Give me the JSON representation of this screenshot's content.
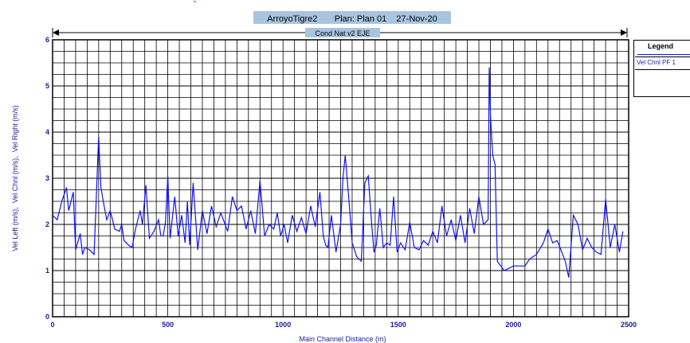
{
  "header": {
    "title": "ArroyoTigre2       Plan: Plan 01    27-Nov-20",
    "reach": "Cond Nat v2 EJE"
  },
  "legend": {
    "title": "Legend",
    "entries": [
      "Vel Chnl PF 1"
    ]
  },
  "colors": {
    "series": "#1010ff",
    "title_bg": "#a8c4de",
    "grid": "#000000"
  },
  "chart_data": {
    "type": "line",
    "xlabel": "Main Channel Distance (m)",
    "ylabel": "Vel Left (m/s),  Vel Chnl (m/s),  Vel Right (m/s)",
    "xlim": [
      0,
      2500
    ],
    "ylim": [
      0,
      6
    ],
    "x_ticks": [
      "0",
      "500",
      "1000",
      "1500",
      "2000",
      "2500"
    ],
    "y_ticks": [
      "0",
      "1",
      "2",
      "3",
      "4",
      "5",
      "6"
    ],
    "grid": true,
    "legend_position": "right",
    "series": [
      {
        "name": "Vel Chnl PF 1",
        "x": [
          0,
          20,
          40,
          60,
          70,
          80,
          90,
          100,
          120,
          130,
          140,
          160,
          180,
          200,
          210,
          220,
          235,
          250,
          270,
          290,
          300,
          310,
          330,
          345,
          360,
          380,
          390,
          405,
          420,
          440,
          460,
          470,
          480,
          490,
          500,
          510,
          530,
          545,
          560,
          575,
          585,
          595,
          610,
          630,
          650,
          670,
          690,
          710,
          730,
          760,
          780,
          800,
          820,
          840,
          860,
          880,
          900,
          920,
          940,
          960,
          975,
          990,
          1005,
          1020,
          1040,
          1060,
          1080,
          1100,
          1120,
          1140,
          1160,
          1175,
          1185,
          1195,
          1210,
          1230,
          1250,
          1260,
          1270,
          1285,
          1300,
          1320,
          1340,
          1355,
          1370,
          1385,
          1395,
          1405,
          1420,
          1435,
          1450,
          1465,
          1480,
          1495,
          1510,
          1530,
          1550,
          1570,
          1590,
          1610,
          1630,
          1650,
          1670,
          1690,
          1710,
          1730,
          1750,
          1770,
          1790,
          1810,
          1830,
          1850,
          1870,
          1890,
          1895,
          1900,
          1910,
          1920,
          1930,
          1960,
          2000,
          2030,
          2050,
          2070,
          2100,
          2130,
          2150,
          2170,
          2190,
          2210,
          2225,
          2240,
          2260,
          2280,
          2300,
          2320,
          2340,
          2360,
          2380,
          2400,
          2420,
          2440,
          2460,
          2475
        ],
        "values": [
          2.2,
          2.1,
          2.5,
          2.8,
          2.3,
          2.5,
          2.7,
          1.45,
          1.8,
          1.35,
          1.5,
          1.45,
          1.35,
          3.9,
          2.8,
          2.5,
          2.1,
          2.3,
          1.9,
          1.85,
          2.0,
          1.65,
          1.55,
          1.5,
          1.9,
          2.3,
          2.0,
          2.85,
          1.7,
          1.85,
          2.1,
          1.75,
          1.75,
          2.05,
          3.05,
          1.7,
          2.6,
          1.75,
          2.2,
          1.6,
          2.5,
          1.55,
          2.9,
          1.45,
          2.3,
          1.8,
          2.4,
          1.95,
          2.25,
          1.85,
          2.6,
          2.3,
          2.4,
          1.9,
          2.3,
          1.8,
          2.95,
          1.75,
          2.0,
          1.9,
          2.25,
          1.75,
          2.0,
          1.6,
          2.2,
          1.85,
          2.15,
          1.8,
          2.4,
          1.95,
          2.7,
          1.75,
          1.55,
          1.5,
          2.2,
          1.4,
          2.0,
          3.0,
          3.5,
          2.6,
          1.6,
          1.3,
          1.2,
          2.9,
          3.05,
          2.0,
          1.4,
          1.55,
          2.35,
          1.5,
          1.6,
          1.55,
          2.6,
          1.4,
          1.6,
          1.45,
          2.05,
          1.5,
          1.45,
          1.65,
          1.55,
          1.85,
          1.6,
          2.4,
          1.75,
          2.1,
          1.65,
          2.2,
          1.6,
          2.35,
          1.8,
          2.6,
          2.0,
          2.1,
          5.4,
          4.4,
          3.5,
          3.3,
          1.2,
          1.0,
          1.1,
          1.1,
          1.1,
          1.25,
          1.35,
          1.6,
          1.9,
          1.6,
          1.65,
          1.4,
          1.2,
          0.85,
          2.2,
          2.0,
          1.45,
          1.7,
          1.5,
          1.4,
          1.35,
          2.55,
          1.5,
          2.0,
          1.4,
          1.85
        ]
      }
    ]
  }
}
